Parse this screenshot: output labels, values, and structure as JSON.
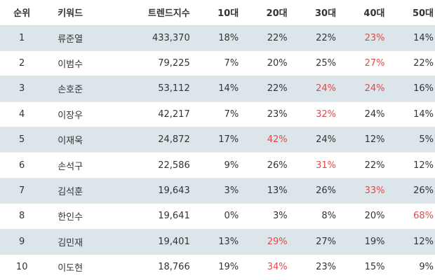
{
  "headers": {
    "rank": "순위",
    "keyword": "키워드",
    "index": "트렌드지수",
    "age10": "10대",
    "age20": "20대",
    "age30": "30대",
    "age40": "40대",
    "age50": "50대"
  },
  "highlight_color": "#e24a4a",
  "rows": [
    {
      "rank": "1",
      "keyword": "류준열",
      "index": "433,370",
      "age10": "18%",
      "age20": "22%",
      "age30": "22%",
      "age40": "23%",
      "age50": "14%",
      "highlight": "age40"
    },
    {
      "rank": "2",
      "keyword": "이범수",
      "index": "79,225",
      "age10": "7%",
      "age20": "20%",
      "age30": "25%",
      "age40": "27%",
      "age50": "22%",
      "highlight": "age40"
    },
    {
      "rank": "3",
      "keyword": "손호준",
      "index": "53,112",
      "age10": "14%",
      "age20": "22%",
      "age30": "24%",
      "age40": "24%",
      "age50": "16%",
      "highlight": "age30,age40"
    },
    {
      "rank": "4",
      "keyword": "이장우",
      "index": "42,217",
      "age10": "7%",
      "age20": "23%",
      "age30": "32%",
      "age40": "24%",
      "age50": "14%",
      "highlight": "age30"
    },
    {
      "rank": "5",
      "keyword": "이재욱",
      "index": "24,872",
      "age10": "17%",
      "age20": "42%",
      "age30": "24%",
      "age40": "12%",
      "age50": "5%",
      "highlight": "age20"
    },
    {
      "rank": "6",
      "keyword": "손석구",
      "index": "22,586",
      "age10": "9%",
      "age20": "26%",
      "age30": "31%",
      "age40": "22%",
      "age50": "12%",
      "highlight": "age30"
    },
    {
      "rank": "7",
      "keyword": "김석훈",
      "index": "19,643",
      "age10": "3%",
      "age20": "13%",
      "age30": "26%",
      "age40": "33%",
      "age50": "26%",
      "highlight": "age40"
    },
    {
      "rank": "8",
      "keyword": "한인수",
      "index": "19,641",
      "age10": "0%",
      "age20": "3%",
      "age30": "8%",
      "age40": "20%",
      "age50": "68%",
      "highlight": "age50"
    },
    {
      "rank": "9",
      "keyword": "김민재",
      "index": "19,401",
      "age10": "13%",
      "age20": "29%",
      "age30": "27%",
      "age40": "19%",
      "age50": "12%",
      "highlight": "age20"
    },
    {
      "rank": "10",
      "keyword": "이도현",
      "index": "18,766",
      "age10": "19%",
      "age20": "34%",
      "age30": "23%",
      "age40": "15%",
      "age50": "9%",
      "highlight": "age20"
    }
  ]
}
